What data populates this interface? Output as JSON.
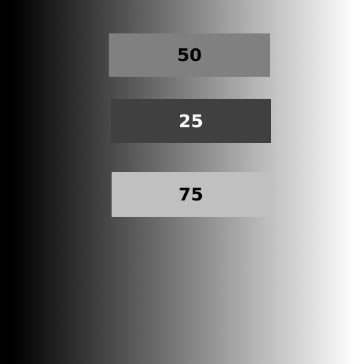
{
  "background": {
    "gradient_start": "#000000",
    "gradient_end": "#ffffff"
  },
  "swatches": [
    {
      "label": "50",
      "value": 50,
      "fill": "#808080",
      "text_color": "#000000"
    },
    {
      "label": "25",
      "value": 25,
      "fill": "#404040",
      "text_color": "#ffffff"
    },
    {
      "label": "75",
      "value": 75,
      "fill": "#c0c0c0",
      "text_color": "#000000"
    }
  ]
}
